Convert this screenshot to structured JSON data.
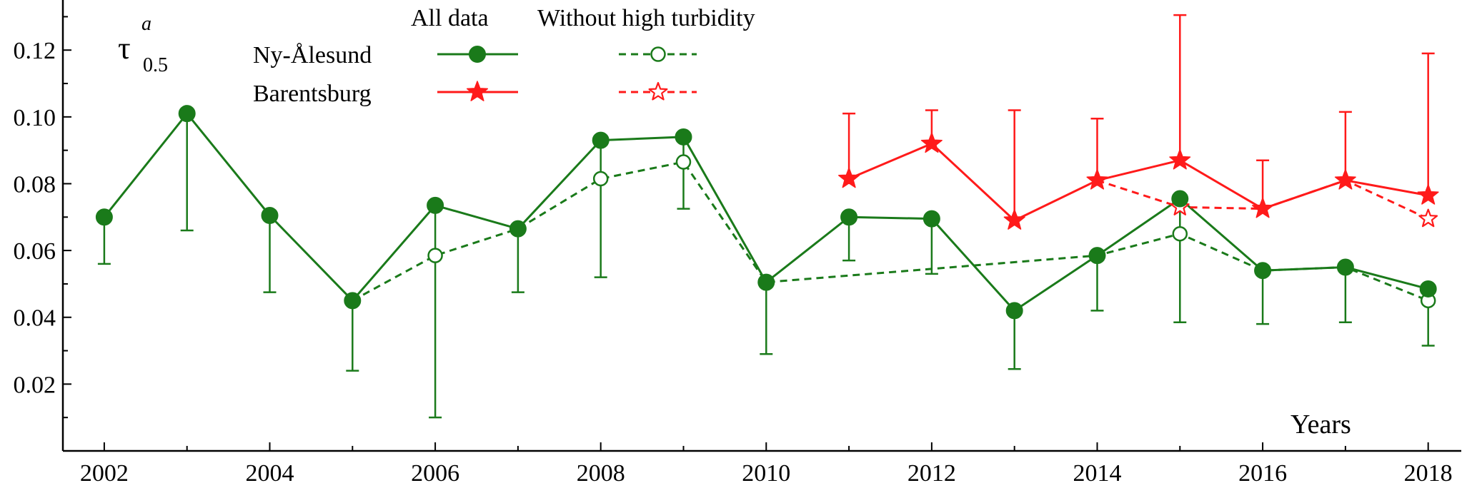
{
  "chart_data": {
    "type": "line",
    "ylabel": {
      "symbol": "τ",
      "superscript": "a",
      "subscript": "0.5"
    },
    "xlabel": "Years",
    "xlim": [
      2001.5,
      2018.4
    ],
    "ylim": [
      0.0,
      0.135
    ],
    "x_ticks": [
      2002,
      2004,
      2006,
      2008,
      2010,
      2012,
      2014,
      2016,
      2018
    ],
    "x_minor_ticks": [
      2003,
      2005,
      2007,
      2009,
      2011,
      2013,
      2015,
      2017
    ],
    "y_ticks": [
      0.02,
      0.04,
      0.06,
      0.08,
      0.1,
      0.12
    ],
    "y_minor_ticks": [
      0.01,
      0.03,
      0.05,
      0.07,
      0.09,
      0.11,
      0.13
    ],
    "grid": false,
    "legend": {
      "placement": "top-left",
      "col_headers": [
        "All data",
        "Without high turbidity"
      ],
      "rows": [
        "Ny-Ålesund",
        "Barentsburg"
      ]
    },
    "colors": {
      "ny_alesund": "#1a7a1a",
      "barentsburg": "#ff1a1a"
    },
    "series": [
      {
        "name": "Ny-Ålesund",
        "variant": "All data",
        "color": "#1a7a1a",
        "marker": "filled-circle",
        "line": "solid",
        "points": [
          {
            "x": 2002,
            "y": 0.07,
            "err_low": 0.056
          },
          {
            "x": 2003,
            "y": 0.101,
            "err_low": 0.066
          },
          {
            "x": 2004,
            "y": 0.0705,
            "err_low": 0.0475
          },
          {
            "x": 2005,
            "y": 0.045,
            "err_low": 0.024
          },
          {
            "x": 2006,
            "y": 0.0735,
            "err_low": 0.01
          },
          {
            "x": 2007,
            "y": 0.0665,
            "err_low": 0.0475
          },
          {
            "x": 2008,
            "y": 0.093,
            "err_low": 0.052
          },
          {
            "x": 2009,
            "y": 0.094,
            "err_low": 0.0725
          },
          {
            "x": 2010,
            "y": 0.0505,
            "err_low": 0.029
          },
          {
            "x": 2011,
            "y": 0.07,
            "err_low": 0.057
          },
          {
            "x": 2012,
            "y": 0.0695,
            "err_low": 0.053
          },
          {
            "x": 2013,
            "y": 0.042,
            "err_low": 0.0245
          },
          {
            "x": 2014,
            "y": 0.0585,
            "err_low": 0.042
          },
          {
            "x": 2015,
            "y": 0.0755,
            "err_low": 0.0385
          },
          {
            "x": 2016,
            "y": 0.054,
            "err_low": 0.038
          },
          {
            "x": 2017,
            "y": 0.055,
            "err_low": 0.0385
          },
          {
            "x": 2018,
            "y": 0.0485,
            "err_low": 0.0315
          }
        ]
      },
      {
        "name": "Ny-Ålesund",
        "variant": "Without high turbidity",
        "color": "#1a7a1a",
        "marker": "open-circle",
        "line": "dashed",
        "points": [
          {
            "x": 2005,
            "y": 0.045
          },
          {
            "x": 2006,
            "y": 0.0585
          },
          {
            "x": 2007,
            "y": 0.0665
          },
          {
            "x": 2008,
            "y": 0.0815
          },
          {
            "x": 2009,
            "y": 0.0865
          },
          {
            "x": 2010,
            "y": 0.0505
          },
          {
            "x": 2014,
            "y": 0.0585
          },
          {
            "x": 2015,
            "y": 0.065
          },
          {
            "x": 2016,
            "y": 0.054
          },
          {
            "x": 2017,
            "y": 0.055
          },
          {
            "x": 2018,
            "y": 0.045
          }
        ]
      },
      {
        "name": "Barentsburg",
        "variant": "All data",
        "color": "#ff1a1a",
        "marker": "filled-star",
        "line": "solid",
        "points": [
          {
            "x": 2011,
            "y": 0.0815,
            "err_high": 0.101
          },
          {
            "x": 2012,
            "y": 0.092,
            "err_high": 0.102
          },
          {
            "x": 2013,
            "y": 0.069,
            "err_high": 0.102
          },
          {
            "x": 2014,
            "y": 0.081,
            "err_high": 0.0995
          },
          {
            "x": 2015,
            "y": 0.087,
            "err_high": 0.1305
          },
          {
            "x": 2016,
            "y": 0.0725,
            "err_high": 0.087
          },
          {
            "x": 2017,
            "y": 0.081,
            "err_high": 0.1015
          },
          {
            "x": 2018,
            "y": 0.0765,
            "err_high": 0.119
          }
        ]
      },
      {
        "name": "Barentsburg",
        "variant": "Without high turbidity",
        "color": "#ff1a1a",
        "marker": "open-star",
        "line": "dashed",
        "points": [
          {
            "x": 2014,
            "y": 0.081
          },
          {
            "x": 2015,
            "y": 0.073
          },
          {
            "x": 2016,
            "y": 0.0725
          },
          {
            "x": 2017,
            "y": 0.081
          },
          {
            "x": 2018,
            "y": 0.0695
          }
        ]
      }
    ]
  }
}
